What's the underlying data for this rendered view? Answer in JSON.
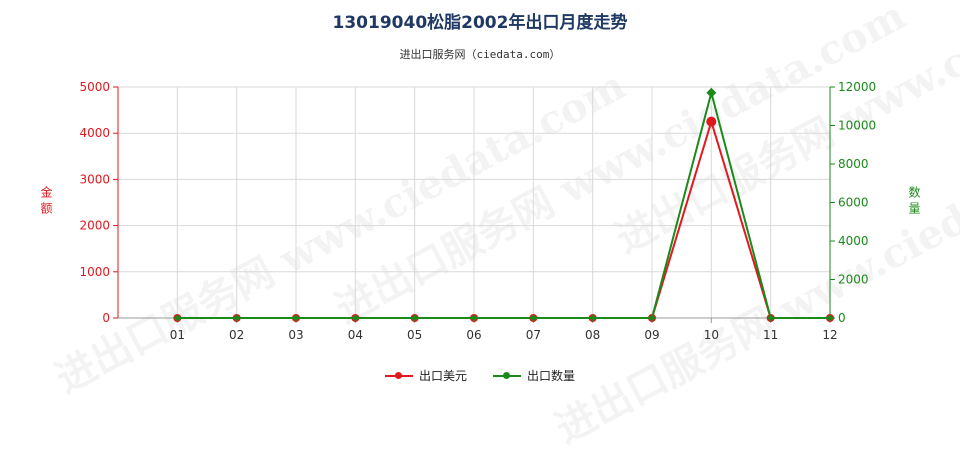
{
  "chart_data": {
    "type": "line",
    "title": "13019040松脂2002年出口月度走势",
    "subtitle": "进出口服务网（ciedata.com）",
    "categories": [
      "01",
      "02",
      "03",
      "04",
      "05",
      "06",
      "07",
      "08",
      "09",
      "10",
      "11",
      "12"
    ],
    "ylabel_left": "金额",
    "ylabel_right": "数量",
    "ylim_left": [
      0,
      5000
    ],
    "ylim_right": [
      0,
      12000
    ],
    "yticks_left": [
      "0",
      "1000",
      "2000",
      "3000",
      "4000",
      "5000"
    ],
    "yticks_right": [
      "0",
      "2000",
      "4000",
      "6000",
      "8000",
      "10000",
      "12000"
    ],
    "grid": true,
    "legend_position": "bottom",
    "series": [
      {
        "name": "出口美元",
        "axis": "left",
        "color": "#e0191f",
        "values": [
          0,
          0,
          0,
          0,
          0,
          0,
          0,
          0,
          0,
          4250,
          0,
          0
        ]
      },
      {
        "name": "出口数量",
        "axis": "right",
        "color": "#1a8a1a",
        "values": [
          0,
          0,
          0,
          0,
          0,
          0,
          0,
          0,
          0,
          11700,
          0,
          0
        ]
      }
    ]
  },
  "watermark": "进出口服务网 www.ciedata.com"
}
